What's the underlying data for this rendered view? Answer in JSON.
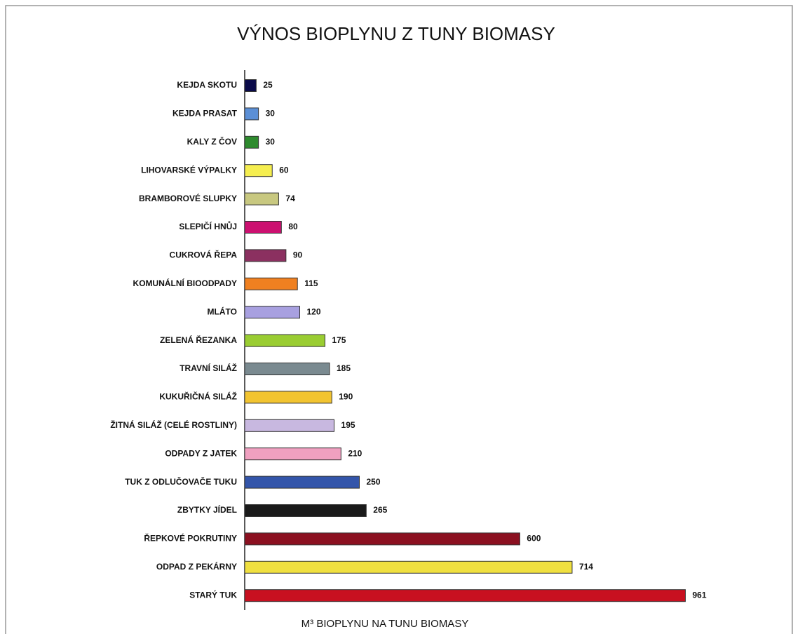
{
  "chart_data": {
    "type": "bar",
    "orientation": "horizontal",
    "title": "VÝNOS BIOPLYNU Z TUNY BIOMASY",
    "x_label": "M³ BIOPLYNU NA TUNU BIOMASY",
    "categories": [
      "KEJDA SKOTU",
      "KEJDA PRASAT",
      "KALY Z ČOV",
      "LIHOVARSKÉ VÝPALKY",
      "BRAMBOROVÉ SLUPKY",
      "SLEPIČÍ HNŮJ",
      "CUKROVÁ ŘEPA",
      "KOMUNÁLNÍ BIOODPADY",
      "MLÁTO",
      "ZELENÁ ŘEZANKA",
      "TRAVNÍ SILÁŽ",
      "KUKUŘIČNÁ SILÁŽ",
      "ŽITNÁ SILÁŽ (CELÉ ROSTLINY)",
      "ODPADY Z JATEK",
      "TUK Z ODLUČOVAČE TUKU",
      "ZBYTKY JÍDEL",
      "ŘEPKOVÉ POKRUTINY",
      "ODPAD Z PEKÁRNY",
      "STARÝ TUK"
    ],
    "values": [
      25,
      30,
      30,
      60,
      74,
      80,
      90,
      115,
      120,
      175,
      185,
      190,
      195,
      210,
      250,
      265,
      600,
      714,
      961
    ],
    "colors": [
      "#0b0b4a",
      "#5b8fd6",
      "#2e8b2e",
      "#f5ee50",
      "#c8c880",
      "#cc1070",
      "#8b3060",
      "#f08020",
      "#a8a0e0",
      "#9acd32",
      "#7a8a90",
      "#f2c430",
      "#c8b8e0",
      "#f0a0c0",
      "#3355aa",
      "#1a1a1a",
      "#8b1020",
      "#f0e040",
      "#c81020"
    ],
    "xlim": [
      0,
      1000
    ]
  }
}
